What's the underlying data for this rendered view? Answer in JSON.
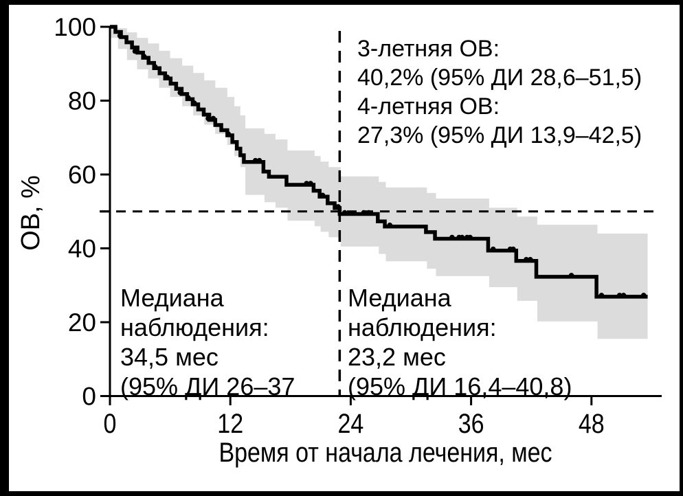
{
  "figure": {
    "bg": "#ffffff",
    "frame_color": "#000000"
  },
  "chart_data": {
    "type": "line",
    "subtype": "kaplan-meier-step-curve",
    "title": "",
    "xlabel": "Время от начала лечения, мес",
    "ylabel": "ОВ, %",
    "xlim": [
      0,
      55
    ],
    "ylim": [
      0,
      100
    ],
    "x_ticks": [
      0,
      12,
      24,
      36,
      48
    ],
    "y_ticks": [
      100,
      80,
      60,
      40,
      20,
      0
    ],
    "y_minor_ticks": [
      50
    ],
    "grid": false,
    "legend": "none",
    "curve_color": "#000000",
    "band_color": "#dcdcdc",
    "end_time": 53.6,
    "steps": [
      [
        0,
        100
      ],
      [
        0.55,
        98.6
      ],
      [
        1.1,
        97.2
      ],
      [
        1.65,
        95.8
      ],
      [
        2.2,
        94.4
      ],
      [
        2.75,
        93.0
      ],
      [
        3.3,
        91.6
      ],
      [
        3.85,
        90.2
      ],
      [
        4.4,
        88.8
      ],
      [
        4.95,
        87.4
      ],
      [
        5.5,
        86.0
      ],
      [
        6.05,
        84.6
      ],
      [
        6.6,
        83.2
      ],
      [
        7.15,
        81.8
      ],
      [
        7.7,
        80.4
      ],
      [
        8.25,
        79.0
      ],
      [
        8.8,
        77.6
      ],
      [
        9.35,
        76.2
      ],
      [
        9.9,
        74.8
      ],
      [
        10.5,
        73.4
      ],
      [
        11.1,
        72.0
      ],
      [
        11.7,
        70.6
      ],
      [
        12.2,
        68.8
      ],
      [
        12.65,
        67.0
      ],
      [
        13.0,
        65.2
      ],
      [
        13.35,
        63.4
      ],
      [
        15.3,
        60.8
      ],
      [
        15.85,
        59.4
      ],
      [
        17.6,
        57.2
      ],
      [
        20.3,
        55.6
      ],
      [
        20.9,
        54.0
      ],
      [
        21.7,
        52.2
      ],
      [
        22.4,
        50.9
      ],
      [
        22.9,
        49.3
      ],
      [
        26.7,
        47.3
      ],
      [
        27.4,
        45.9
      ],
      [
        31.5,
        44.4
      ],
      [
        32.4,
        42.6
      ],
      [
        37.7,
        39.4
      ],
      [
        40.5,
        36.6
      ],
      [
        42.5,
        32.3
      ],
      [
        48.5,
        26.9
      ]
    ],
    "censor_marks": [
      [
        1.0,
        97.2
      ],
      [
        2.5,
        93.0
      ],
      [
        3.4,
        91.6
      ],
      [
        4.5,
        88.8
      ],
      [
        5.7,
        86.0
      ],
      [
        7.0,
        81.8
      ],
      [
        7.8,
        80.4
      ],
      [
        8.4,
        79.0
      ],
      [
        9.8,
        74.8
      ],
      [
        10.3,
        74.8
      ],
      [
        11.8,
        70.6
      ],
      [
        14.5,
        63.4
      ],
      [
        14.9,
        63.4
      ],
      [
        19.6,
        57.2
      ],
      [
        20.0,
        57.2
      ],
      [
        21.2,
        54.0
      ],
      [
        22.5,
        50.9
      ],
      [
        22.75,
        50.9
      ],
      [
        23.4,
        49.3
      ],
      [
        25.3,
        49.3
      ],
      [
        25.8,
        49.3
      ],
      [
        27.9,
        45.9
      ],
      [
        34.1,
        42.6
      ],
      [
        34.8,
        42.6
      ],
      [
        35.1,
        42.6
      ],
      [
        35.6,
        42.6
      ],
      [
        35.9,
        42.6
      ],
      [
        38.2,
        39.4
      ],
      [
        39.9,
        39.4
      ],
      [
        40.2,
        39.4
      ],
      [
        41.5,
        36.6
      ],
      [
        41.9,
        36.6
      ],
      [
        46.0,
        32.3
      ],
      [
        49.0,
        26.9
      ],
      [
        50.8,
        26.9
      ],
      [
        51.2,
        26.9
      ],
      [
        53.2,
        26.9
      ]
    ],
    "confidence_band": [
      [
        0,
        100,
        97
      ],
      [
        0.8,
        99.6,
        94
      ],
      [
        1.7,
        98.5,
        91
      ],
      [
        2.7,
        97,
        88.5
      ],
      [
        3.8,
        95.5,
        86
      ],
      [
        4.9,
        93.5,
        83.5
      ],
      [
        6.0,
        91.5,
        81
      ],
      [
        7.2,
        89.5,
        78.5
      ],
      [
        8.3,
        87.5,
        76
      ],
      [
        9.4,
        85.5,
        73.5
      ],
      [
        10.5,
        83.5,
        71
      ],
      [
        11.7,
        81,
        68
      ],
      [
        12.4,
        78.5,
        65
      ],
      [
        13.0,
        76,
        62
      ],
      [
        13.5,
        72.5,
        54.5
      ],
      [
        15.4,
        71,
        52.5
      ],
      [
        16.5,
        69.5,
        51
      ],
      [
        17.7,
        66.5,
        47.5
      ],
      [
        20.4,
        65,
        46
      ],
      [
        21.0,
        63.5,
        44.5
      ],
      [
        21.8,
        62,
        43
      ],
      [
        23.0,
        59.5,
        40.5
      ],
      [
        26.8,
        58,
        38.5
      ],
      [
        27.5,
        56.5,
        36.5
      ],
      [
        31.6,
        55,
        34.5
      ],
      [
        32.5,
        53.5,
        32.5
      ],
      [
        37.8,
        51,
        29.5
      ],
      [
        40.6,
        48.6,
        25.8
      ],
      [
        42.6,
        46.4,
        20.2
      ],
      [
        48.6,
        44,
        15.5
      ]
    ],
    "reference_lines": {
      "horizontal_y": 50,
      "vertical_x": 22.9
    }
  },
  "annotations": {
    "survival_rates": {
      "lines": [
        "3-летняя ОВ:",
        "40,2% (95% ДИ 28,6–51,5)",
        "4-летняя ОВ:",
        "27,3% (95% ДИ 13,9–42,5)"
      ]
    },
    "median_left": {
      "lines": [
        "Медиана",
        "наблюдения:",
        "34,5 мес",
        "(95% ДИ 26–37"
      ]
    },
    "median_right": {
      "lines": [
        "Медиана",
        "наблюдения:",
        "23,2 мес",
        "(95% ДИ 16,4–40,8)"
      ]
    }
  }
}
